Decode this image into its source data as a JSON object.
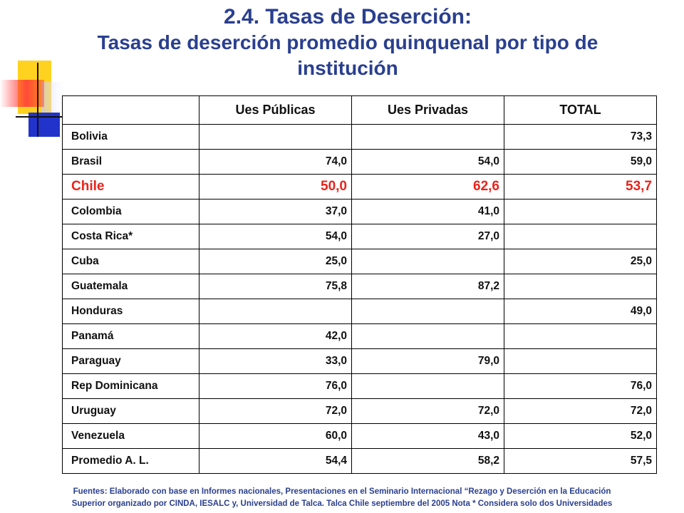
{
  "title": {
    "line1": "2.4. Tasas de Deserción:",
    "line2": "Tasas de deserción promedio quinquenal por tipo de institución"
  },
  "table": {
    "headers": [
      "",
      "Ues Públicas",
      "Ues Privadas",
      "TOTAL"
    ],
    "rows": [
      {
        "country": "Bolivia",
        "publicas": "",
        "privadas": "",
        "total": "73,3",
        "highlight": false
      },
      {
        "country": "Brasil",
        "publicas": "74,0",
        "privadas": "54,0",
        "total": "59,0",
        "highlight": false
      },
      {
        "country": "Chile",
        "publicas": "50,0",
        "privadas": "62,6",
        "total": "53,7",
        "highlight": true
      },
      {
        "country": "Colombia",
        "publicas": "37,0",
        "privadas": "41,0",
        "total": "",
        "highlight": false
      },
      {
        "country": "Costa Rica*",
        "publicas": "54,0",
        "privadas": "27,0",
        "total": "",
        "highlight": false
      },
      {
        "country": "Cuba",
        "publicas": "25,0",
        "privadas": "",
        "total": "25,0",
        "highlight": false
      },
      {
        "country": "Guatemala",
        "publicas": "75,8",
        "privadas": "87,2",
        "total": "",
        "highlight": false
      },
      {
        "country": "Honduras",
        "publicas": "",
        "privadas": "",
        "total": "49,0",
        "highlight": false
      },
      {
        "country": "Panamá",
        "publicas": "42,0",
        "privadas": "",
        "total": "",
        "highlight": false
      },
      {
        "country": "Paraguay",
        "publicas": "33,0",
        "privadas": "79,0",
        "total": "",
        "highlight": false
      },
      {
        "country": "Rep Dominicana",
        "publicas": "76,0",
        "privadas": "",
        "total": "76,0",
        "highlight": false
      },
      {
        "country": "Uruguay",
        "publicas": "72,0",
        "privadas": "72,0",
        "total": "72,0",
        "highlight": false
      },
      {
        "country": "Venezuela",
        "publicas": "60,0",
        "privadas": "43,0",
        "total": "52,0",
        "highlight": false
      },
      {
        "country": "Promedio A. L.",
        "publicas": "54,4",
        "privadas": "58,2",
        "total": "57,5",
        "highlight": false
      }
    ]
  },
  "footer": {
    "line1": "Fuentes: Elaborado con base en Informes nacionales, Presentaciones en el Seminario Internacional “Rezago y Deserción en la Educación",
    "line2": "Superior organizado por CINDA, IESALC y, Universidad de Talca. Talca Chile septiembre del 2005 Nota * Considera solo dos Universidades"
  },
  "colors": {
    "title": "#2a3f8f",
    "highlight_row": "#e8231b",
    "deco_yellow": "#ffd21f",
    "deco_blue": "#2233cc",
    "deco_red": "#ff2a2a"
  }
}
